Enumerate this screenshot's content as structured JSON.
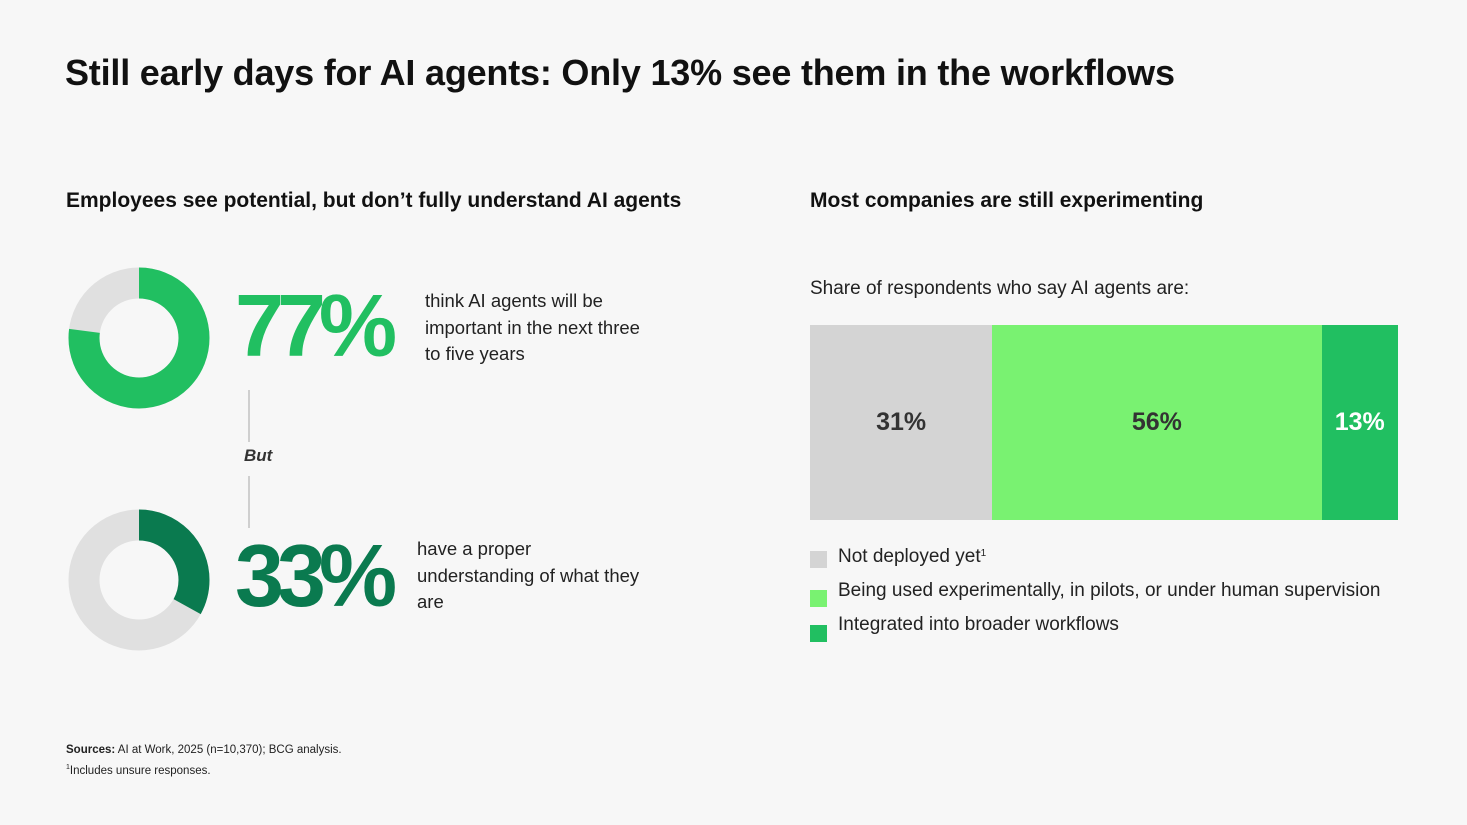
{
  "title": "Still early days for AI agents: Only 13% see them in the workflows",
  "left_section": {
    "heading": "Employees see potential, but don’t fully understand AI agents",
    "stats": [
      {
        "value": "77%",
        "fraction": 0.77,
        "description": "think AI agents will be important in the next three to five years"
      },
      {
        "value": "33%",
        "fraction": 0.33,
        "description": "have a proper understanding of what they are"
      }
    ],
    "connector_label": "But"
  },
  "right_section": {
    "heading": "Most companies are still experimenting",
    "subtitle": "Share of respondents who say AI agents are:"
  },
  "colors": {
    "donut_track": "#e0e0e0",
    "green_bright": "#21bf61",
    "green_dark": "#0a7a4f",
    "light_green": "#79f271",
    "gray": "#d4d4d4",
    "background": "#f7f7f7"
  },
  "chart_data": [
    {
      "type": "pie",
      "values": [
        77,
        23
      ],
      "categories": [
        "think AI agents will be important in the next three to five years",
        "other"
      ],
      "colors": [
        "#21bf61",
        "#e0e0e0"
      ]
    },
    {
      "type": "pie",
      "values": [
        33,
        67
      ],
      "categories": [
        "have a proper understanding of what they are",
        "other"
      ],
      "colors": [
        "#0a7a4f",
        "#e0e0e0"
      ]
    },
    {
      "type": "bar",
      "orientation": "horizontal-stacked",
      "series": [
        {
          "name": "Not deployed yet",
          "value": 31,
          "label": "31%",
          "color": "#d4d4d4",
          "label_color": "#333333",
          "footnote_mark": "1"
        },
        {
          "name": "Being used experimentally, in pilots, or under human supervision",
          "value": 56,
          "label": "56%",
          "color": "#79f271",
          "label_color": "#333333"
        },
        {
          "name": "Integrated into broader workflows",
          "value": 13,
          "label": "13%",
          "color": "#21bf61",
          "label_color": "#ffffff"
        }
      ],
      "legend_position": "bottom"
    }
  ],
  "footnote": {
    "sources_label": "Sources:",
    "sources_text": " AI at Work, 2025 (n=10,370); BCG analysis.",
    "note_mark": "1",
    "note_text": "Includes unsure responses."
  }
}
